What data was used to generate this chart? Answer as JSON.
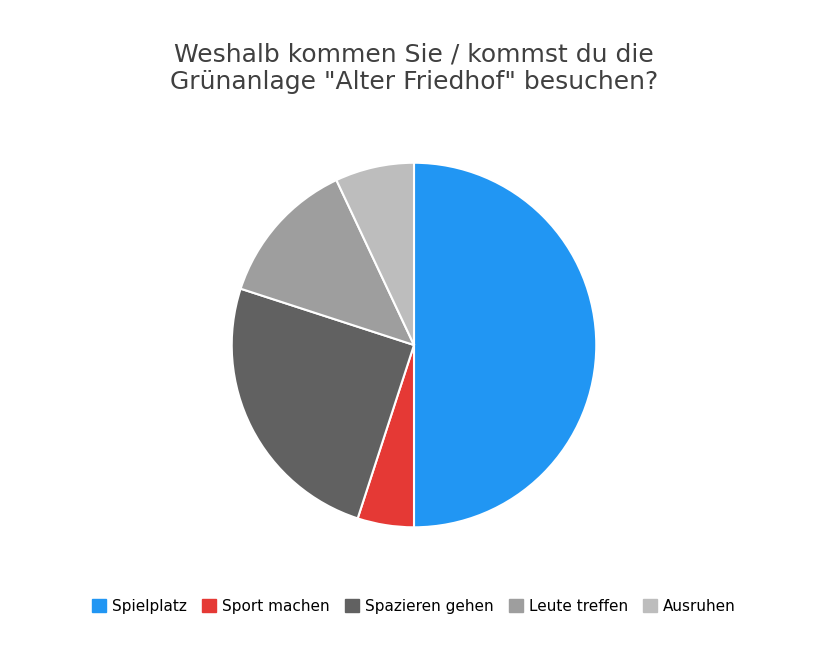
{
  "title": "Weshalb kommen Sie / kommst du die\nGrünanlage \"Alter Friedhof\" besuchen?",
  "labels": [
    "Spielplatz",
    "Sport machen",
    "Spazieren gehen",
    "Leute treffen",
    "Ausruhen"
  ],
  "values": [
    50,
    5,
    25,
    13,
    7
  ],
  "colors": [
    "#2196F3",
    "#E53935",
    "#616161",
    "#9E9E9E",
    "#BDBDBD"
  ],
  "startangle": 90,
  "background_color": "#FFFFFF",
  "title_fontsize": 18,
  "legend_fontsize": 11,
  "border_color": "#AAAAAA",
  "title_color": "#404040"
}
